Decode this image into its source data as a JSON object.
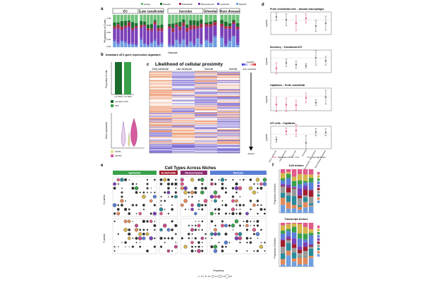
{
  "panel_labels": [
    "a",
    "b",
    "c",
    "d",
    "e",
    "f"
  ],
  "panel_a": {
    "legend": [
      "Airway",
      "Alveolar",
      "Endothelial",
      "Mesenchymal",
      "Lymphoid",
      "Myeloid"
    ],
    "legend_colors": [
      "#6ec27a",
      "#1b6b2c",
      "#a52a4a",
      "#7b3fb8",
      "#6a5acd",
      "#6f9fe0"
    ],
    "groups": [
      "EC",
      "Late canalicular",
      "Saccular",
      "Alveolar",
      "Rare disease"
    ],
    "ylabel": "Proportion of Cells",
    "xlabel": "Sample",
    "yticks": [
      "1.00",
      "0.75",
      "0.50",
      "0.25",
      "0.00"
    ]
  },
  "panel_b": {
    "title": "Immature AT2 gene expression signature",
    "ylabel_top": "Proportion of cells",
    "ylabel_bottom": "Gene expression",
    "xticks": [
      "≥ 2? NPC",
      "≥ 2? NPC"
    ],
    "legend_top": [
      "Immature AT2",
      "AT2"
    ],
    "legend_bottom": [
      "SOX9",
      "SFTPC"
    ],
    "legend_bottom_colors": [
      "#e8e08a",
      "#d65b9f"
    ]
  },
  "panel_c": {
    "title": "Likelihood of cellular proximity",
    "columns": [
      "Early canalicular",
      "Late canalicular",
      "Saccular",
      "Alveolar"
    ],
    "colorbar_title": "log(OR)",
    "axis_label_top": "Early canalicular",
    "axis_label_bottom": "Alveolar"
  },
  "panel_d": {
    "subpanels": [
      "Prolif. endothelial cells – alveolar macrophages",
      "Secretory – Transitional AT2",
      "Capillaries – Prolif. endothelial",
      "AT1 cells – Capillaries"
    ],
    "ylabel": "log(OR)",
    "xticks": [
      "Early canalicular",
      "Late canalicular",
      "Saccular",
      "Alveolar",
      "Rare Disease: Adenomatoid",
      "Rare Disease: Interstitial"
    ],
    "legend": [
      "Significant (FDR < 0.1)",
      "Not significant"
    ]
  },
  "panel_e": {
    "title": "Cell Types Across Niches",
    "categories": [
      "Epithelial",
      "Endothelial",
      "Mesenchymal",
      "Immune"
    ],
    "category_colors": [
      "#3aa14a",
      "#a01f2e",
      "#8a2c6e",
      "#5b7fd6"
    ],
    "row_label_top": "C-niche",
    "row_label_bottom": "T-niche",
    "xlabel": "Frequency",
    "size_legend": [
      "0.1",
      "0.2",
      "0.3",
      "0.4",
      "0.5"
    ]
  },
  "panel_f": {
    "title_top": "Cell niches",
    "title_bottom": "Transcript niches",
    "ylabel": "Proportion of Niches"
  }
}
